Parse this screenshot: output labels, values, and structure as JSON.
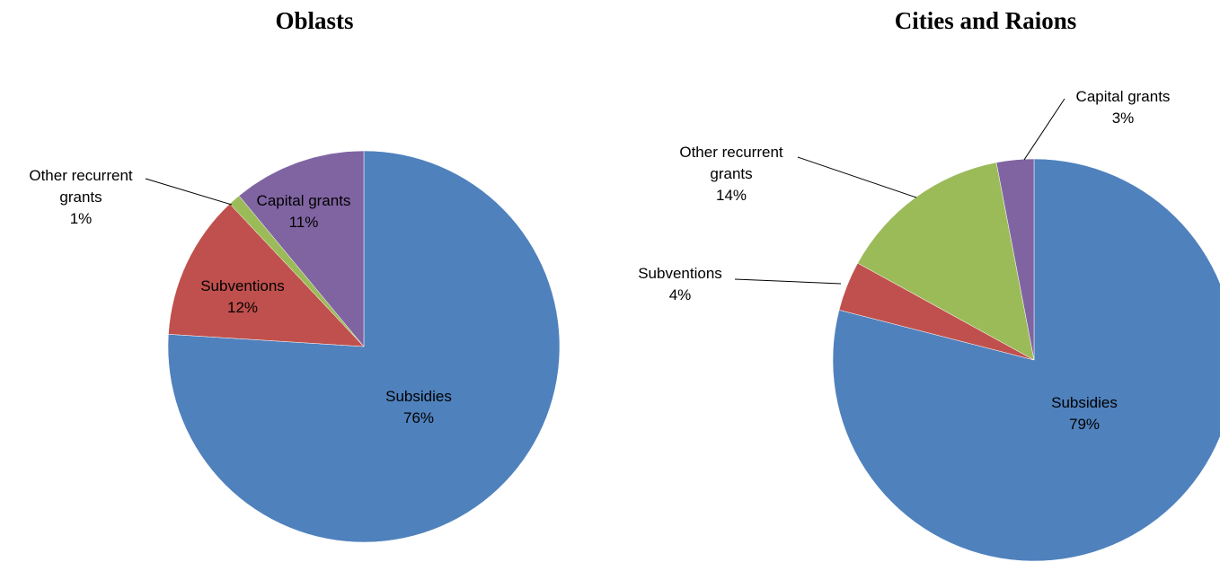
{
  "chart_data": [
    {
      "type": "pie",
      "title": "Oblasts",
      "categories": [
        "Subsidies",
        "Subventions",
        "Other recurrent grants",
        "Capital grants"
      ],
      "values": [
        76,
        12,
        1,
        11
      ],
      "value_labels": [
        "76%",
        "12%",
        "1%",
        "11%"
      ],
      "colors": [
        "#4f81bd",
        "#c0504d",
        "#9bbb59",
        "#8064a2"
      ]
    },
    {
      "type": "pie",
      "title": "Cities and Raions",
      "categories": [
        "Subsidies",
        "Subventions",
        "Other recurrent grants",
        "Capital grants"
      ],
      "values": [
        79,
        4,
        14,
        3
      ],
      "value_labels": [
        "79%",
        "4%",
        "14%",
        "3%"
      ],
      "colors": [
        "#4f81bd",
        "#c0504d",
        "#9bbb59",
        "#8064a2"
      ]
    }
  ]
}
